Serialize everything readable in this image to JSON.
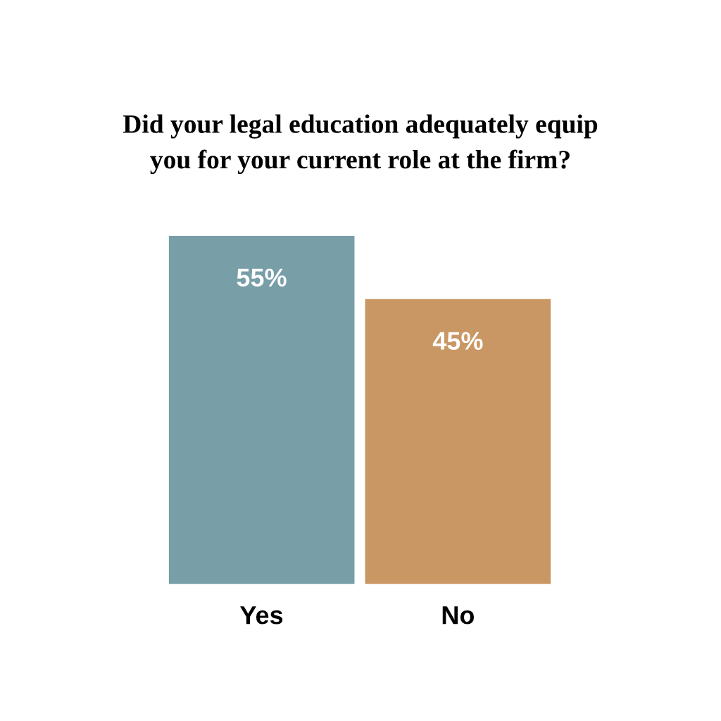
{
  "chart_data": {
    "type": "bar",
    "title": "Did your legal education adequately equip\nyou for your current role at the firm?",
    "categories": [
      "Yes",
      "No"
    ],
    "values": [
      55,
      45
    ],
    "colors": [
      "#789ea8",
      "#c99763"
    ],
    "value_labels": [
      "55%",
      "45%"
    ],
    "grid": false,
    "legend": false
  }
}
